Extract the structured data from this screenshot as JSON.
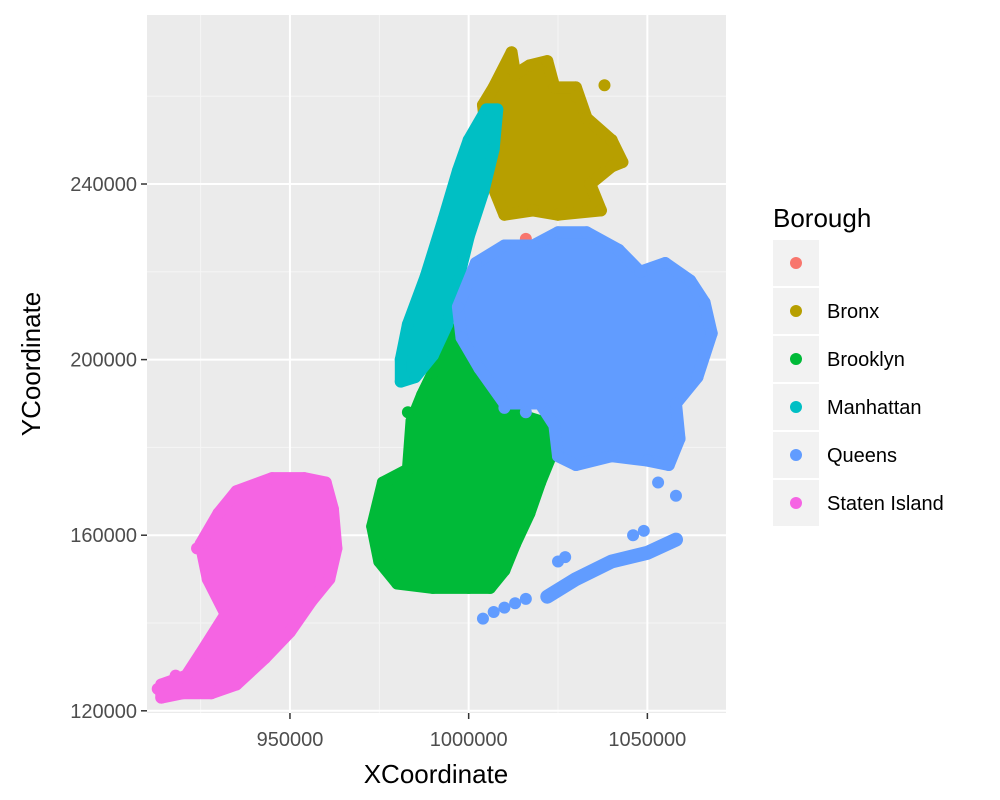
{
  "chart_data": {
    "type": "scatter",
    "xlabel": "XCoordinate",
    "ylabel": "YCoordinate",
    "xlim": [
      910000,
      1072000
    ],
    "ylim": [
      119500,
      278500
    ],
    "x_ticks": [
      950000,
      1000000,
      1050000
    ],
    "x_tick_labels": [
      "950000",
      "1000000",
      "1050000"
    ],
    "y_ticks": [
      120000,
      160000,
      200000,
      240000
    ],
    "y_tick_labels": [
      "120000",
      "160000",
      "200000",
      "240000"
    ],
    "grid": true,
    "legend": {
      "title": "Borough",
      "placement": "right",
      "entries": [
        "",
        "Bronx",
        "Brooklyn",
        "Manhattan",
        "Queens",
        "Staten Island"
      ]
    },
    "series": [
      {
        "name": "",
        "color": "#F8766D",
        "points": [
          [
            1016000,
            227500
          ]
        ]
      },
      {
        "name": "Bronx",
        "color": "#B79F00",
        "polygons": [
          [
            [
              1007000,
              239000
            ],
            [
              1002000,
              243000
            ],
            [
              1005000,
              251000
            ],
            [
              1004000,
              258000
            ],
            [
              1007000,
              262000
            ],
            [
              1012000,
              270000
            ],
            [
              1013000,
              265000
            ],
            [
              1017000,
              267000
            ],
            [
              1022000,
              268000
            ],
            [
              1024000,
              262000
            ],
            [
              1030000,
              262000
            ],
            [
              1033000,
              255000
            ],
            [
              1040000,
              250000
            ],
            [
              1043000,
              245000
            ],
            [
              1040000,
              244000
            ],
            [
              1034000,
              240000
            ],
            [
              1037000,
              234000
            ],
            [
              1025000,
              233000
            ],
            [
              1018000,
              234000
            ],
            [
              1010000,
              233000
            ]
          ]
        ],
        "points": [
          [
            1038000,
            262500
          ],
          [
            1030000,
            260000
          ],
          [
            1040000,
            250000
          ]
        ]
      },
      {
        "name": "Brooklyn",
        "color": "#00BA38",
        "polygons": [
          [
            [
              998000,
              208000
            ],
            [
              994000,
              205000
            ],
            [
              990000,
              197000
            ],
            [
              987000,
              192000
            ],
            [
              984000,
              186000
            ],
            [
              983000,
              175000
            ],
            [
              976000,
              172000
            ],
            [
              973000,
              162000
            ],
            [
              975000,
              154000
            ],
            [
              980000,
              149000
            ],
            [
              990000,
              148000
            ],
            [
              1000000,
              148000
            ],
            [
              1006000,
              148000
            ],
            [
              1010000,
              152000
            ],
            [
              1013000,
              158000
            ],
            [
              1017000,
              165000
            ],
            [
              1020000,
              172000
            ],
            [
              1024000,
              180000
            ],
            [
              1020000,
              186000
            ],
            [
              1012000,
              188000
            ],
            [
              1006000,
              194000
            ],
            [
              1001000,
              202000
            ]
          ]
        ],
        "points": [
          [
            983000,
            188000
          ],
          [
            987000,
            190000
          ],
          [
            978000,
            170000
          ]
        ]
      },
      {
        "name": "Manhattan",
        "color": "#00BFC4",
        "polygons": [
          [
            [
              1008000,
              257000
            ],
            [
              1005000,
              257000
            ],
            [
              1000000,
              250000
            ],
            [
              997000,
              243000
            ],
            [
              993000,
              232000
            ],
            [
              988000,
              219000
            ],
            [
              983000,
              208000
            ],
            [
              981000,
              200000
            ],
            [
              981000,
              195000
            ],
            [
              985000,
              196000
            ],
            [
              990000,
              201000
            ],
            [
              994000,
              208000
            ],
            [
              997000,
              218000
            ],
            [
              1000000,
              228000
            ],
            [
              1004000,
              238000
            ],
            [
              1007000,
              248000
            ]
          ]
        ],
        "points": []
      },
      {
        "name": "Queens",
        "color": "#619CFF",
        "polygons": [
          [
            [
              997000,
              212000
            ],
            [
              1002000,
              222000
            ],
            [
              1010000,
              226000
            ],
            [
              1018000,
              226000
            ],
            [
              1025000,
              229000
            ],
            [
              1033000,
              229000
            ],
            [
              1042000,
              225000
            ],
            [
              1048000,
              220000
            ],
            [
              1055000,
              222000
            ],
            [
              1062000,
              218000
            ],
            [
              1066000,
              213000
            ],
            [
              1068000,
              206000
            ],
            [
              1064000,
              196000
            ],
            [
              1058000,
              190000
            ],
            [
              1059000,
              182000
            ],
            [
              1056000,
              176000
            ],
            [
              1050000,
              177000
            ],
            [
              1040000,
              178000
            ],
            [
              1030000,
              176000
            ],
            [
              1025000,
              178000
            ],
            [
              1024000,
              185000
            ],
            [
              1020000,
              190000
            ],
            [
              1010000,
              190000
            ],
            [
              1003000,
              198000
            ],
            [
              998000,
              205000
            ]
          ]
        ],
        "points": [
          [
            1010000,
            189000
          ],
          [
            1016000,
            188000
          ],
          [
            1053000,
            172000
          ],
          [
            1058000,
            169000
          ],
          [
            1046000,
            160000
          ],
          [
            1049000,
            161000
          ]
        ],
        "strip": [
          [
            1022000,
            146000
          ],
          [
            1030000,
            150000
          ],
          [
            1040000,
            154000
          ],
          [
            1050000,
            156000
          ],
          [
            1058000,
            159000
          ]
        ],
        "small": [
          [
            1004000,
            141000
          ],
          [
            1007000,
            142500
          ],
          [
            1010000,
            143500
          ],
          [
            1013000,
            144500
          ],
          [
            1016000,
            145500
          ],
          [
            1027000,
            155000
          ],
          [
            1025000,
            154000
          ]
        ]
      },
      {
        "name": "Staten Island",
        "color": "#F564E3",
        "polygons": [
          [
            [
              925000,
              133000
            ],
            [
              921000,
              128000
            ],
            [
              914000,
              126000
            ],
            [
              914000,
              123000
            ],
            [
              920000,
              124000
            ],
            [
              928000,
              124000
            ],
            [
              935000,
              126000
            ],
            [
              943000,
              132000
            ],
            [
              950000,
              138000
            ],
            [
              956000,
              145000
            ],
            [
              961000,
              150000
            ],
            [
              963000,
              157000
            ],
            [
              962000,
              166000
            ],
            [
              960000,
              172000
            ],
            [
              954000,
              173000
            ],
            [
              945000,
              173000
            ],
            [
              935000,
              170000
            ],
            [
              930000,
              165000
            ],
            [
              925000,
              158000
            ],
            [
              927000,
              150000
            ],
            [
              932000,
              142000
            ]
          ]
        ],
        "points": [
          [
            924000,
            157000
          ],
          [
            926000,
            159000
          ],
          [
            918000,
            128000
          ],
          [
            913000,
            125000
          ]
        ]
      }
    ]
  }
}
